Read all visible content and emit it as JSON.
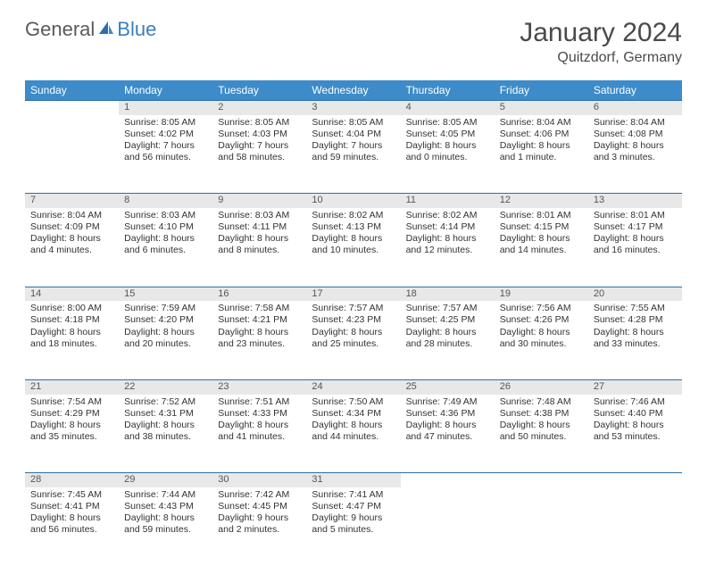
{
  "brand": {
    "part1": "General",
    "part2": "Blue"
  },
  "title": "January 2024",
  "location": "Quitzdorf, Germany",
  "colors": {
    "header_bg": "#3d8bc9",
    "header_text": "#ffffff",
    "daynum_bg": "#e8e8e8",
    "row_border": "#2b6fa8",
    "text": "#333333",
    "logo_gray": "#5a5a5a",
    "logo_blue": "#3b7fbf"
  },
  "weekdays": [
    "Sunday",
    "Monday",
    "Tuesday",
    "Wednesday",
    "Thursday",
    "Friday",
    "Saturday"
  ],
  "weeks": [
    {
      "nums": [
        "",
        "1",
        "2",
        "3",
        "4",
        "5",
        "6"
      ],
      "cells": [
        null,
        {
          "sunrise": "Sunrise: 8:05 AM",
          "sunset": "Sunset: 4:02 PM",
          "d1": "Daylight: 7 hours",
          "d2": "and 56 minutes."
        },
        {
          "sunrise": "Sunrise: 8:05 AM",
          "sunset": "Sunset: 4:03 PM",
          "d1": "Daylight: 7 hours",
          "d2": "and 58 minutes."
        },
        {
          "sunrise": "Sunrise: 8:05 AM",
          "sunset": "Sunset: 4:04 PM",
          "d1": "Daylight: 7 hours",
          "d2": "and 59 minutes."
        },
        {
          "sunrise": "Sunrise: 8:05 AM",
          "sunset": "Sunset: 4:05 PM",
          "d1": "Daylight: 8 hours",
          "d2": "and 0 minutes."
        },
        {
          "sunrise": "Sunrise: 8:04 AM",
          "sunset": "Sunset: 4:06 PM",
          "d1": "Daylight: 8 hours",
          "d2": "and 1 minute."
        },
        {
          "sunrise": "Sunrise: 8:04 AM",
          "sunset": "Sunset: 4:08 PM",
          "d1": "Daylight: 8 hours",
          "d2": "and 3 minutes."
        }
      ]
    },
    {
      "nums": [
        "7",
        "8",
        "9",
        "10",
        "11",
        "12",
        "13"
      ],
      "cells": [
        {
          "sunrise": "Sunrise: 8:04 AM",
          "sunset": "Sunset: 4:09 PM",
          "d1": "Daylight: 8 hours",
          "d2": "and 4 minutes."
        },
        {
          "sunrise": "Sunrise: 8:03 AM",
          "sunset": "Sunset: 4:10 PM",
          "d1": "Daylight: 8 hours",
          "d2": "and 6 minutes."
        },
        {
          "sunrise": "Sunrise: 8:03 AM",
          "sunset": "Sunset: 4:11 PM",
          "d1": "Daylight: 8 hours",
          "d2": "and 8 minutes."
        },
        {
          "sunrise": "Sunrise: 8:02 AM",
          "sunset": "Sunset: 4:13 PM",
          "d1": "Daylight: 8 hours",
          "d2": "and 10 minutes."
        },
        {
          "sunrise": "Sunrise: 8:02 AM",
          "sunset": "Sunset: 4:14 PM",
          "d1": "Daylight: 8 hours",
          "d2": "and 12 minutes."
        },
        {
          "sunrise": "Sunrise: 8:01 AM",
          "sunset": "Sunset: 4:15 PM",
          "d1": "Daylight: 8 hours",
          "d2": "and 14 minutes."
        },
        {
          "sunrise": "Sunrise: 8:01 AM",
          "sunset": "Sunset: 4:17 PM",
          "d1": "Daylight: 8 hours",
          "d2": "and 16 minutes."
        }
      ]
    },
    {
      "nums": [
        "14",
        "15",
        "16",
        "17",
        "18",
        "19",
        "20"
      ],
      "cells": [
        {
          "sunrise": "Sunrise: 8:00 AM",
          "sunset": "Sunset: 4:18 PM",
          "d1": "Daylight: 8 hours",
          "d2": "and 18 minutes."
        },
        {
          "sunrise": "Sunrise: 7:59 AM",
          "sunset": "Sunset: 4:20 PM",
          "d1": "Daylight: 8 hours",
          "d2": "and 20 minutes."
        },
        {
          "sunrise": "Sunrise: 7:58 AM",
          "sunset": "Sunset: 4:21 PM",
          "d1": "Daylight: 8 hours",
          "d2": "and 23 minutes."
        },
        {
          "sunrise": "Sunrise: 7:57 AM",
          "sunset": "Sunset: 4:23 PM",
          "d1": "Daylight: 8 hours",
          "d2": "and 25 minutes."
        },
        {
          "sunrise": "Sunrise: 7:57 AM",
          "sunset": "Sunset: 4:25 PM",
          "d1": "Daylight: 8 hours",
          "d2": "and 28 minutes."
        },
        {
          "sunrise": "Sunrise: 7:56 AM",
          "sunset": "Sunset: 4:26 PM",
          "d1": "Daylight: 8 hours",
          "d2": "and 30 minutes."
        },
        {
          "sunrise": "Sunrise: 7:55 AM",
          "sunset": "Sunset: 4:28 PM",
          "d1": "Daylight: 8 hours",
          "d2": "and 33 minutes."
        }
      ]
    },
    {
      "nums": [
        "21",
        "22",
        "23",
        "24",
        "25",
        "26",
        "27"
      ],
      "cells": [
        {
          "sunrise": "Sunrise: 7:54 AM",
          "sunset": "Sunset: 4:29 PM",
          "d1": "Daylight: 8 hours",
          "d2": "and 35 minutes."
        },
        {
          "sunrise": "Sunrise: 7:52 AM",
          "sunset": "Sunset: 4:31 PM",
          "d1": "Daylight: 8 hours",
          "d2": "and 38 minutes."
        },
        {
          "sunrise": "Sunrise: 7:51 AM",
          "sunset": "Sunset: 4:33 PM",
          "d1": "Daylight: 8 hours",
          "d2": "and 41 minutes."
        },
        {
          "sunrise": "Sunrise: 7:50 AM",
          "sunset": "Sunset: 4:34 PM",
          "d1": "Daylight: 8 hours",
          "d2": "and 44 minutes."
        },
        {
          "sunrise": "Sunrise: 7:49 AM",
          "sunset": "Sunset: 4:36 PM",
          "d1": "Daylight: 8 hours",
          "d2": "and 47 minutes."
        },
        {
          "sunrise": "Sunrise: 7:48 AM",
          "sunset": "Sunset: 4:38 PM",
          "d1": "Daylight: 8 hours",
          "d2": "and 50 minutes."
        },
        {
          "sunrise": "Sunrise: 7:46 AM",
          "sunset": "Sunset: 4:40 PM",
          "d1": "Daylight: 8 hours",
          "d2": "and 53 minutes."
        }
      ]
    },
    {
      "nums": [
        "28",
        "29",
        "30",
        "31",
        "",
        "",
        ""
      ],
      "cells": [
        {
          "sunrise": "Sunrise: 7:45 AM",
          "sunset": "Sunset: 4:41 PM",
          "d1": "Daylight: 8 hours",
          "d2": "and 56 minutes."
        },
        {
          "sunrise": "Sunrise: 7:44 AM",
          "sunset": "Sunset: 4:43 PM",
          "d1": "Daylight: 8 hours",
          "d2": "and 59 minutes."
        },
        {
          "sunrise": "Sunrise: 7:42 AM",
          "sunset": "Sunset: 4:45 PM",
          "d1": "Daylight: 9 hours",
          "d2": "and 2 minutes."
        },
        {
          "sunrise": "Sunrise: 7:41 AM",
          "sunset": "Sunset: 4:47 PM",
          "d1": "Daylight: 9 hours",
          "d2": "and 5 minutes."
        },
        null,
        null,
        null
      ]
    }
  ]
}
